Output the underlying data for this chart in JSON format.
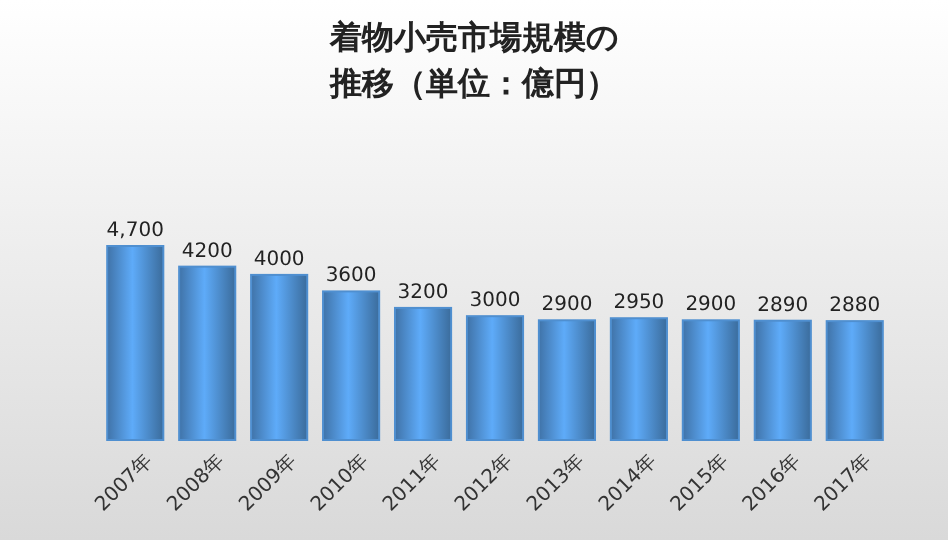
{
  "chart_data": {
    "type": "bar",
    "title": "着物小売市場規模の推移（単位：億円）",
    "categories": [
      "2007年",
      "2008年",
      "2009年",
      "2010年",
      "2011年",
      "2012年",
      "2013年",
      "2014年",
      "2015年",
      "2016年",
      "2017年"
    ],
    "values": [
      4700,
      4200,
      4000,
      3600,
      3200,
      3000,
      2900,
      2950,
      2900,
      2890,
      2880
    ],
    "value_labels": [
      "4,700",
      "4200",
      "4000",
      "3600",
      "3200",
      "3000",
      "2900",
      "2950",
      "2900",
      "2890",
      "2880"
    ],
    "color": "#4f8fd0"
  }
}
